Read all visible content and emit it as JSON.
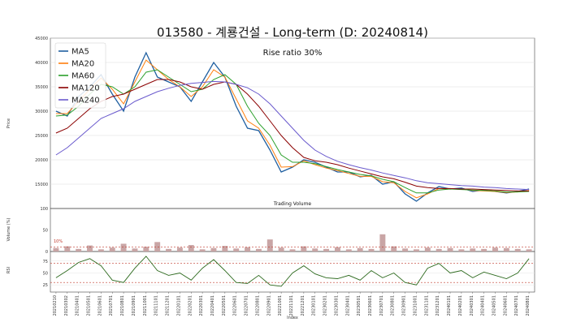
{
  "chart_data": [
    {
      "type": "line",
      "panel": "price",
      "title": "013580 - 계룡건설 - Long-term (D: 20240814)",
      "annotation": "Rise ratio 30%",
      "ylabel": "Price",
      "ylim": [
        10000,
        45000
      ],
      "yticks": [
        15000,
        20000,
        25000,
        30000,
        35000,
        40000,
        45000
      ],
      "legend_position": "top-left",
      "grid": true,
      "x": [
        "2021-02",
        "2021-03",
        "2021-04",
        "2021-05",
        "2021-06",
        "2021-07",
        "2021-08",
        "2021-09",
        "2021-10",
        "2021-11",
        "2021-12",
        "2022-01",
        "2022-02",
        "2022-03",
        "2022-04",
        "2022-05",
        "2022-06",
        "2022-07",
        "2022-08",
        "2022-09",
        "2022-10",
        "2022-11",
        "2022-12",
        "2023-01",
        "2023-02",
        "2023-03",
        "2023-04",
        "2023-05",
        "2023-06",
        "2023-07",
        "2023-08",
        "2023-09",
        "2023-10",
        "2023-11",
        "2023-12",
        "2024-01",
        "2024-02",
        "2024-03",
        "2024-04",
        "2024-05",
        "2024-06",
        "2024-07",
        "2024-08"
      ],
      "series": [
        {
          "name": "MA5",
          "color": "#1f5fa0",
          "values": [
            30000,
            29000,
            33000,
            35000,
            37500,
            33500,
            30000,
            37000,
            42000,
            37000,
            36000,
            35000,
            32000,
            36000,
            40000,
            37000,
            31000,
            26500,
            26000,
            22000,
            17500,
            18500,
            20000,
            19500,
            18500,
            17500,
            17500,
            16500,
            16800,
            15000,
            15500,
            13000,
            11500,
            13200,
            14500,
            14000,
            14200,
            13500,
            13800,
            13500,
            13200,
            13500,
            14000
          ]
        },
        {
          "name": "MA20",
          "color": "#ff7f0e",
          "values": [
            29500,
            29500,
            32000,
            34500,
            36800,
            34500,
            31500,
            36000,
            40500,
            38500,
            36500,
            35000,
            33000,
            35000,
            38500,
            37000,
            32500,
            28000,
            26500,
            23000,
            18500,
            18600,
            19800,
            19000,
            18300,
            17800,
            17200,
            16600,
            16600,
            15500,
            15300,
            13500,
            12200,
            13000,
            14100,
            14000,
            14000,
            13700,
            13600,
            13500,
            13300,
            13400,
            13700
          ]
        },
        {
          "name": "MA60",
          "color": "#2ca02c",
          "values": [
            29000,
            29200,
            31000,
            33500,
            35500,
            35000,
            33500,
            35000,
            38000,
            38500,
            37000,
            35500,
            34000,
            34500,
            36500,
            37500,
            35500,
            31000,
            27500,
            25000,
            21000,
            19500,
            19500,
            19200,
            18600,
            18000,
            17500,
            17000,
            16700,
            16000,
            15500,
            14300,
            13200,
            13200,
            13800,
            14000,
            13900,
            13800,
            13700,
            13600,
            13400,
            13400,
            13500
          ]
        },
        {
          "name": "MA120",
          "color": "#8b0000",
          "values": [
            25500,
            26500,
            28500,
            30500,
            32000,
            33000,
            33500,
            34500,
            35500,
            36500,
            36500,
            36000,
            35000,
            34500,
            35500,
            36000,
            35500,
            33500,
            31000,
            28000,
            25000,
            22500,
            20500,
            19800,
            19500,
            19000,
            18300,
            17700,
            17100,
            16500,
            16100,
            15400,
            14600,
            14300,
            14100,
            14100,
            14000,
            14000,
            13900,
            13800,
            13700,
            13600,
            13600
          ]
        },
        {
          "name": "MA240",
          "color": "#6a5acd",
          "values": [
            21000,
            22500,
            24500,
            26500,
            28500,
            29500,
            30500,
            32000,
            33000,
            34000,
            34700,
            35300,
            35700,
            35900,
            36100,
            36000,
            35500,
            34800,
            33500,
            31500,
            29000,
            26500,
            24000,
            22000,
            20700,
            19700,
            19000,
            18400,
            17900,
            17300,
            16800,
            16300,
            15700,
            15300,
            15100,
            14900,
            14700,
            14600,
            14400,
            14300,
            14100,
            14000,
            13900
          ]
        }
      ]
    },
    {
      "type": "bar",
      "panel": "volume",
      "title": "Trading Volume",
      "ylabel": "Volume (%)",
      "ylim": [
        0,
        100
      ],
      "yticks": [
        0,
        50,
        100
      ],
      "threshold": 10,
      "threshold_label": "10%",
      "values": [
        8,
        12,
        6,
        14,
        5,
        9,
        18,
        7,
        11,
        22,
        6,
        9,
        15,
        5,
        8,
        13,
        7,
        10,
        6,
        28,
        9,
        5,
        12,
        7,
        6,
        10,
        5,
        8,
        6,
        40,
        12,
        7,
        5,
        9,
        6,
        8,
        5,
        7,
        6,
        9,
        8,
        6,
        5
      ]
    },
    {
      "type": "line",
      "panel": "rsi",
      "ylabel": "RSI",
      "ylim": [
        10,
        95
      ],
      "yticks": [
        25,
        50,
        75
      ],
      "thresholds": [
        30,
        70
      ],
      "values": [
        40,
        55,
        72,
        80,
        65,
        35,
        30,
        60,
        85,
        55,
        45,
        50,
        35,
        60,
        78,
        55,
        30,
        28,
        45,
        25,
        22,
        50,
        65,
        48,
        40,
        38,
        45,
        35,
        55,
        40,
        50,
        30,
        25,
        60,
        70,
        50,
        55,
        40,
        52,
        45,
        38,
        50,
        80
      ],
      "series_color": "#2d6a1e",
      "xlabel": "Index",
      "tick_labels": [
        "20210210",
        "20210302",
        "20210401",
        "20210501",
        "20210601",
        "20210701",
        "20210801",
        "20210901",
        "20211001",
        "20211101",
        "20211201",
        "20220101",
        "20220201",
        "20220301",
        "20220401",
        "20220501",
        "20220601",
        "20220701",
        "20220801",
        "20220901",
        "20221001",
        "20221101",
        "20221201",
        "20230101",
        "20230201",
        "20230301",
        "20230401",
        "20230501",
        "20230601",
        "20230701",
        "20230801",
        "20230901",
        "20231001",
        "20231101",
        "20231201",
        "20240101",
        "20240201",
        "20240301",
        "20240401",
        "20240501",
        "20240601",
        "20240701",
        "20240801"
      ]
    }
  ]
}
